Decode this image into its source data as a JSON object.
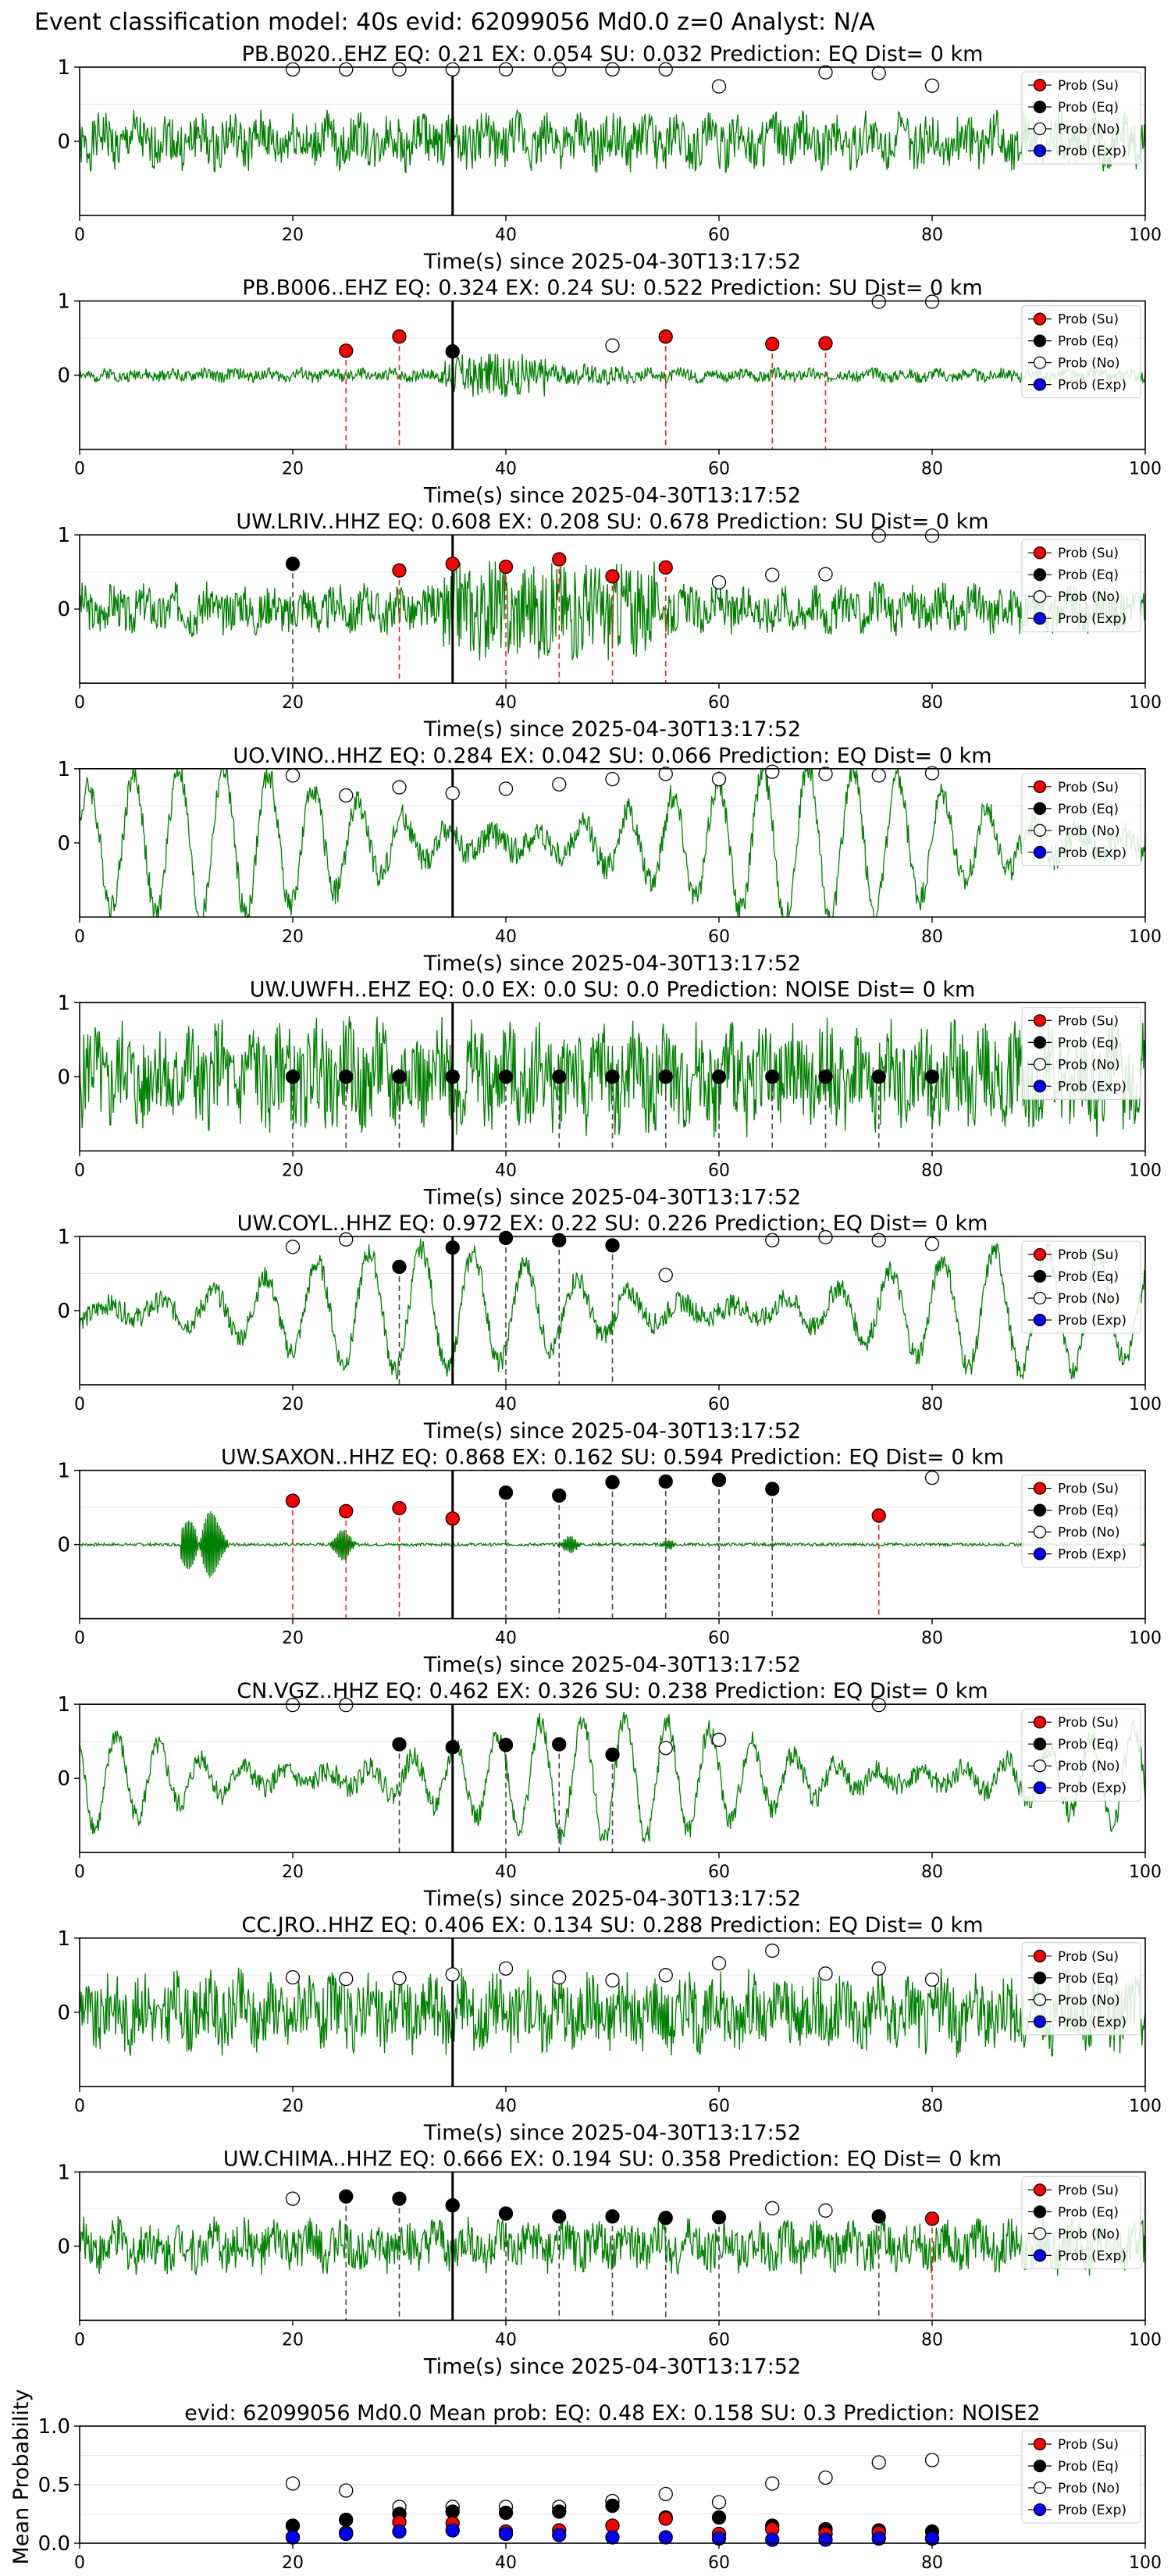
{
  "suptitle": "Event classification model: 40s evid: 62099056 Md0.0 z=0 Analyst: N/A",
  "legend_items": [
    "Prob (Su)",
    "Prob (Eq)",
    "Prob (No)",
    "Prob (Exp)"
  ],
  "colors": {
    "su": "#ff0000",
    "eq": "#000000",
    "no": "#ffffff",
    "exp": "#0000ff",
    "trace": "#008000"
  },
  "chart_data": [
    {
      "type": "line",
      "station": "PB.B020..EHZ",
      "title": "PB.B020..EHZ   EQ: 0.21  EX: 0.054  SU: 0.032   Prediction: EQ    Dist= 0 km",
      "xlabel": "Time(s) since 2025-04-30T13:17:52",
      "xlim": [
        0,
        100
      ],
      "ylim": [
        -1,
        1
      ],
      "xticks": [
        0,
        20,
        40,
        60,
        80,
        100
      ],
      "yticks": [
        0,
        1
      ],
      "pick_time": 35,
      "waveform": "noisy",
      "trace_amp": 0.32,
      "trace_seed": 1,
      "points": [
        {
          "t": 20,
          "p": 0.97,
          "c": "no"
        },
        {
          "t": 25,
          "p": 0.97,
          "c": "no"
        },
        {
          "t": 30,
          "p": 0.97,
          "c": "no"
        },
        {
          "t": 35,
          "p": 0.97,
          "c": "no"
        },
        {
          "t": 40,
          "p": 0.97,
          "c": "no"
        },
        {
          "t": 45,
          "p": 0.97,
          "c": "no"
        },
        {
          "t": 50,
          "p": 0.97,
          "c": "no"
        },
        {
          "t": 55,
          "p": 0.97,
          "c": "no"
        },
        {
          "t": 60,
          "p": 0.74,
          "c": "no"
        },
        {
          "t": 70,
          "p": 0.93,
          "c": "no"
        },
        {
          "t": 75,
          "p": 0.92,
          "c": "no"
        },
        {
          "t": 80,
          "p": 0.75,
          "c": "no"
        }
      ]
    },
    {
      "type": "line",
      "station": "PB.B006..EHZ",
      "title": "PB.B006..EHZ   EQ: 0.324  EX: 0.24  SU: 0.522   Prediction: SU    Dist= 0 km",
      "xlabel": "Time(s) since 2025-04-30T13:17:52",
      "xlim": [
        0,
        100
      ],
      "ylim": [
        -1,
        1
      ],
      "xticks": [
        0,
        20,
        40,
        60,
        80,
        100
      ],
      "yticks": [
        0,
        1
      ],
      "pick_time": 35,
      "waveform": "burst",
      "trace_amp": 0.08,
      "trace_seed": 2,
      "points": [
        {
          "t": 25,
          "p": 0.33,
          "c": "su"
        },
        {
          "t": 30,
          "p": 0.52,
          "c": "su"
        },
        {
          "t": 35,
          "p": 0.32,
          "c": "eq"
        },
        {
          "t": 50,
          "p": 0.4,
          "c": "no"
        },
        {
          "t": 55,
          "p": 0.52,
          "c": "su"
        },
        {
          "t": 65,
          "p": 0.42,
          "c": "su"
        },
        {
          "t": 70,
          "p": 0.43,
          "c": "su"
        },
        {
          "t": 75,
          "p": 0.99,
          "c": "no"
        },
        {
          "t": 80,
          "p": 0.99,
          "c": "no"
        }
      ]
    },
    {
      "type": "line",
      "station": "UW.LRIV..HHZ",
      "title": "UW.LRIV..HHZ   EQ: 0.608  EX: 0.208  SU: 0.678   Prediction: SU    Dist= 0 km",
      "xlabel": "Time(s) since 2025-04-30T13:17:52",
      "xlim": [
        0,
        100
      ],
      "ylim": [
        -1,
        1
      ],
      "xticks": [
        0,
        20,
        40,
        60,
        80,
        100
      ],
      "yticks": [
        0,
        1
      ],
      "pick_time": 35,
      "waveform": "burst2",
      "trace_amp": 0.28,
      "trace_seed": 3,
      "points": [
        {
          "t": 20,
          "p": 0.61,
          "c": "eq"
        },
        {
          "t": 30,
          "p": 0.52,
          "c": "su"
        },
        {
          "t": 35,
          "p": 0.61,
          "c": "su"
        },
        {
          "t": 40,
          "p": 0.57,
          "c": "su"
        },
        {
          "t": 45,
          "p": 0.67,
          "c": "su"
        },
        {
          "t": 50,
          "p": 0.44,
          "c": "su"
        },
        {
          "t": 55,
          "p": 0.56,
          "c": "su"
        },
        {
          "t": 60,
          "p": 0.36,
          "c": "no"
        },
        {
          "t": 65,
          "p": 0.46,
          "c": "no"
        },
        {
          "t": 70,
          "p": 0.47,
          "c": "no"
        },
        {
          "t": 75,
          "p": 0.99,
          "c": "no"
        },
        {
          "t": 80,
          "p": 0.99,
          "c": "no"
        }
      ]
    },
    {
      "type": "line",
      "station": "UO.VINO..HHZ",
      "title": "UO.VINO..HHZ   EQ: 0.284  EX: 0.042  SU: 0.066   Prediction: EQ    Dist= 0 km",
      "xlabel": "Time(s) since 2025-04-30T13:17:52",
      "xlim": [
        0,
        100
      ],
      "ylim": [
        -1,
        1
      ],
      "xticks": [
        0,
        20,
        40,
        60,
        80,
        100
      ],
      "yticks": [
        0,
        1
      ],
      "pick_time": 35,
      "waveform": "smooth",
      "trace_amp": 0.62,
      "trace_seed": 4,
      "points": [
        {
          "t": 20,
          "p": 0.91,
          "c": "no"
        },
        {
          "t": 25,
          "p": 0.64,
          "c": "no"
        },
        {
          "t": 30,
          "p": 0.75,
          "c": "no"
        },
        {
          "t": 35,
          "p": 0.67,
          "c": "no"
        },
        {
          "t": 40,
          "p": 0.73,
          "c": "no"
        },
        {
          "t": 45,
          "p": 0.79,
          "c": "no"
        },
        {
          "t": 50,
          "p": 0.86,
          "c": "no"
        },
        {
          "t": 55,
          "p": 0.93,
          "c": "no"
        },
        {
          "t": 60,
          "p": 0.86,
          "c": "no"
        },
        {
          "t": 65,
          "p": 0.96,
          "c": "no"
        },
        {
          "t": 70,
          "p": 0.93,
          "c": "no"
        },
        {
          "t": 75,
          "p": 0.91,
          "c": "no"
        },
        {
          "t": 80,
          "p": 0.94,
          "c": "no"
        }
      ]
    },
    {
      "type": "line",
      "station": "UW.UWFH..EHZ",
      "title": "UW.UWFH..EHZ   EQ: 0.0  EX: 0.0  SU: 0.0   Prediction: NOISE    Dist= 0 km",
      "xlabel": "Time(s) since 2025-04-30T13:17:52",
      "xlim": [
        0,
        100
      ],
      "ylim": [
        -1,
        1
      ],
      "xticks": [
        0,
        20,
        40,
        60,
        80,
        100
      ],
      "yticks": [
        0,
        1
      ],
      "pick_time": 35,
      "waveform": "noisy",
      "trace_amp": 0.62,
      "trace_seed": 5,
      "points": [
        {
          "t": 20,
          "p": 0.0,
          "c": "eq"
        },
        {
          "t": 25,
          "p": 0.0,
          "c": "eq"
        },
        {
          "t": 30,
          "p": 0.0,
          "c": "eq"
        },
        {
          "t": 35,
          "p": 0.0,
          "c": "eq"
        },
        {
          "t": 40,
          "p": 0.0,
          "c": "eq"
        },
        {
          "t": 45,
          "p": 0.0,
          "c": "eq"
        },
        {
          "t": 50,
          "p": 0.0,
          "c": "eq"
        },
        {
          "t": 55,
          "p": 0.0,
          "c": "eq"
        },
        {
          "t": 60,
          "p": 0.0,
          "c": "eq"
        },
        {
          "t": 65,
          "p": 0.0,
          "c": "eq"
        },
        {
          "t": 70,
          "p": 0.0,
          "c": "eq"
        },
        {
          "t": 75,
          "p": 0.0,
          "c": "eq"
        },
        {
          "t": 80,
          "p": 0.0,
          "c": "eq"
        }
      ]
    },
    {
      "type": "line",
      "station": "UW.COYL..HHZ",
      "title": "UW.COYL..HHZ   EQ: 0.972  EX: 0.22  SU: 0.226   Prediction: EQ    Dist= 0 km",
      "xlabel": "Time(s) since 2025-04-30T13:17:52",
      "xlim": [
        0,
        100
      ],
      "ylim": [
        -1,
        1
      ],
      "xticks": [
        0,
        20,
        40,
        60,
        80,
        100
      ],
      "yticks": [
        0,
        1
      ],
      "pick_time": 35,
      "waveform": "smooth",
      "trace_amp": 0.5,
      "trace_seed": 6,
      "points": [
        {
          "t": 20,
          "p": 0.86,
          "c": "no"
        },
        {
          "t": 25,
          "p": 0.96,
          "c": "no"
        },
        {
          "t": 30,
          "p": 0.59,
          "c": "eq"
        },
        {
          "t": 35,
          "p": 0.85,
          "c": "eq"
        },
        {
          "t": 40,
          "p": 0.98,
          "c": "eq"
        },
        {
          "t": 45,
          "p": 0.95,
          "c": "eq"
        },
        {
          "t": 50,
          "p": 0.88,
          "c": "eq"
        },
        {
          "t": 55,
          "p": 0.48,
          "c": "no"
        },
        {
          "t": 65,
          "p": 0.95,
          "c": "no"
        },
        {
          "t": 70,
          "p": 0.99,
          "c": "no"
        },
        {
          "t": 75,
          "p": 0.95,
          "c": "no"
        },
        {
          "t": 80,
          "p": 0.9,
          "c": "no"
        }
      ]
    },
    {
      "type": "line",
      "station": "UW.SAXON..HHZ",
      "title": "UW.SAXON..HHZ   EQ: 0.868  EX: 0.162  SU: 0.594   Prediction: EQ    Dist= 0 km",
      "xlabel": "Time(s) since 2025-04-30T13:17:52",
      "xlim": [
        0,
        100
      ],
      "ylim": [
        -1,
        1
      ],
      "xticks": [
        0,
        20,
        40,
        60,
        80,
        100
      ],
      "yticks": [
        0,
        1
      ],
      "pick_time": 35,
      "waveform": "quiet",
      "trace_amp": 0.02,
      "trace_seed": 7,
      "points": [
        {
          "t": 20,
          "p": 0.59,
          "c": "su"
        },
        {
          "t": 25,
          "p": 0.45,
          "c": "su"
        },
        {
          "t": 30,
          "p": 0.49,
          "c": "su"
        },
        {
          "t": 35,
          "p": 0.35,
          "c": "su"
        },
        {
          "t": 40,
          "p": 0.7,
          "c": "eq"
        },
        {
          "t": 45,
          "p": 0.66,
          "c": "eq"
        },
        {
          "t": 50,
          "p": 0.84,
          "c": "eq"
        },
        {
          "t": 55,
          "p": 0.85,
          "c": "eq"
        },
        {
          "t": 60,
          "p": 0.87,
          "c": "eq"
        },
        {
          "t": 65,
          "p": 0.75,
          "c": "eq"
        },
        {
          "t": 75,
          "p": 0.39,
          "c": "su"
        },
        {
          "t": 80,
          "p": 0.9,
          "c": "no"
        }
      ]
    },
    {
      "type": "line",
      "station": "CN.VGZ..HHZ",
      "title": "CN.VGZ..HHZ   EQ: 0.462  EX: 0.326  SU: 0.238   Prediction: EQ    Dist= 0 km",
      "xlabel": "Time(s) since 2025-04-30T13:17:52",
      "xlim": [
        0,
        100
      ],
      "ylim": [
        -1,
        1
      ],
      "xticks": [
        0,
        20,
        40,
        60,
        80,
        100
      ],
      "yticks": [
        0,
        1
      ],
      "pick_time": 35,
      "waveform": "smooth",
      "trace_amp": 0.5,
      "trace_seed": 8,
      "points": [
        {
          "t": 20,
          "p": 0.99,
          "c": "no"
        },
        {
          "t": 25,
          "p": 0.99,
          "c": "no"
        },
        {
          "t": 30,
          "p": 0.46,
          "c": "eq"
        },
        {
          "t": 35,
          "p": 0.42,
          "c": "eq"
        },
        {
          "t": 40,
          "p": 0.45,
          "c": "eq"
        },
        {
          "t": 45,
          "p": 0.46,
          "c": "eq"
        },
        {
          "t": 50,
          "p": 0.32,
          "c": "eq"
        },
        {
          "t": 55,
          "p": 0.41,
          "c": "no"
        },
        {
          "t": 60,
          "p": 0.52,
          "c": "no"
        },
        {
          "t": 75,
          "p": 0.99,
          "c": "no"
        }
      ]
    },
    {
      "type": "line",
      "station": "CC.JRO..HHZ",
      "title": "CC.JRO..HHZ   EQ: 0.406  EX: 0.134  SU: 0.288   Prediction: EQ    Dist= 0 km",
      "xlabel": "Time(s) since 2025-04-30T13:17:52",
      "xlim": [
        0,
        100
      ],
      "ylim": [
        -1,
        1
      ],
      "xticks": [
        0,
        20,
        40,
        60,
        80,
        100
      ],
      "yticks": [
        0,
        1
      ],
      "pick_time": 35,
      "waveform": "noisy",
      "trace_amp": 0.45,
      "trace_seed": 9,
      "points": [
        {
          "t": 20,
          "p": 0.47,
          "c": "no"
        },
        {
          "t": 25,
          "p": 0.45,
          "c": "no"
        },
        {
          "t": 30,
          "p": 0.46,
          "c": "no"
        },
        {
          "t": 35,
          "p": 0.51,
          "c": "no"
        },
        {
          "t": 40,
          "p": 0.59,
          "c": "no"
        },
        {
          "t": 45,
          "p": 0.47,
          "c": "no"
        },
        {
          "t": 50,
          "p": 0.43,
          "c": "no"
        },
        {
          "t": 55,
          "p": 0.5,
          "c": "no"
        },
        {
          "t": 60,
          "p": 0.66,
          "c": "no"
        },
        {
          "t": 65,
          "p": 0.83,
          "c": "no"
        },
        {
          "t": 70,
          "p": 0.52,
          "c": "no"
        },
        {
          "t": 75,
          "p": 0.59,
          "c": "no"
        },
        {
          "t": 80,
          "p": 0.44,
          "c": "no"
        }
      ]
    },
    {
      "type": "line",
      "station": "UW.CHIMA..HHZ",
      "title": "UW.CHIMA..HHZ   EQ: 0.666  EX: 0.194  SU: 0.358   Prediction: EQ    Dist= 0 km",
      "xlabel": "Time(s) since 2025-04-30T13:17:52",
      "xlim": [
        0,
        100
      ],
      "ylim": [
        -1,
        1
      ],
      "xticks": [
        0,
        20,
        40,
        60,
        80,
        100
      ],
      "yticks": [
        0,
        1
      ],
      "pick_time": 35,
      "waveform": "noisy",
      "trace_amp": 0.3,
      "trace_seed": 10,
      "points": [
        {
          "t": 20,
          "p": 0.64,
          "c": "no"
        },
        {
          "t": 25,
          "p": 0.67,
          "c": "eq"
        },
        {
          "t": 30,
          "p": 0.64,
          "c": "eq"
        },
        {
          "t": 35,
          "p": 0.55,
          "c": "eq"
        },
        {
          "t": 40,
          "p": 0.44,
          "c": "eq"
        },
        {
          "t": 45,
          "p": 0.4,
          "c": "eq"
        },
        {
          "t": 50,
          "p": 0.4,
          "c": "eq"
        },
        {
          "t": 55,
          "p": 0.38,
          "c": "eq"
        },
        {
          "t": 60,
          "p": 0.39,
          "c": "eq"
        },
        {
          "t": 65,
          "p": 0.51,
          "c": "no"
        },
        {
          "t": 70,
          "p": 0.48,
          "c": "no"
        },
        {
          "t": 75,
          "p": 0.4,
          "c": "eq"
        },
        {
          "t": 80,
          "p": 0.37,
          "c": "su"
        }
      ]
    },
    {
      "type": "scatter",
      "title": "evid: 62099056  Md0.0   Mean prob:   EQ: 0.48  EX: 0.158  SU: 0.3   Prediction: NOISE2",
      "ylabel": "Mean Probability",
      "xlim": [
        0,
        100
      ],
      "ylim": [
        0,
        1
      ],
      "xticks": [
        0,
        20,
        40,
        60,
        80,
        100
      ],
      "yticks": [
        0.0,
        0.5,
        1.0
      ],
      "x": [
        20,
        25,
        30,
        35,
        40,
        45,
        50,
        55,
        60,
        65,
        70,
        75,
        80
      ],
      "series": [
        {
          "key": "no",
          "values": [
            0.51,
            0.45,
            0.31,
            0.31,
            0.31,
            0.31,
            0.36,
            0.42,
            0.35,
            0.51,
            0.56,
            0.69,
            0.71
          ]
        },
        {
          "key": "eq",
          "values": [
            0.15,
            0.2,
            0.25,
            0.27,
            0.26,
            0.27,
            0.32,
            0.22,
            0.22,
            0.15,
            0.12,
            0.11,
            0.1
          ]
        },
        {
          "key": "su",
          "values": [
            0.05,
            0.09,
            0.18,
            0.17,
            0.1,
            0.11,
            0.15,
            0.21,
            0.08,
            0.12,
            0.08,
            0.09,
            0.04
          ]
        },
        {
          "key": "exp",
          "values": [
            0.05,
            0.08,
            0.1,
            0.11,
            0.08,
            0.07,
            0.05,
            0.05,
            0.04,
            0.03,
            0.03,
            0.04,
            0.04
          ]
        }
      ]
    }
  ]
}
